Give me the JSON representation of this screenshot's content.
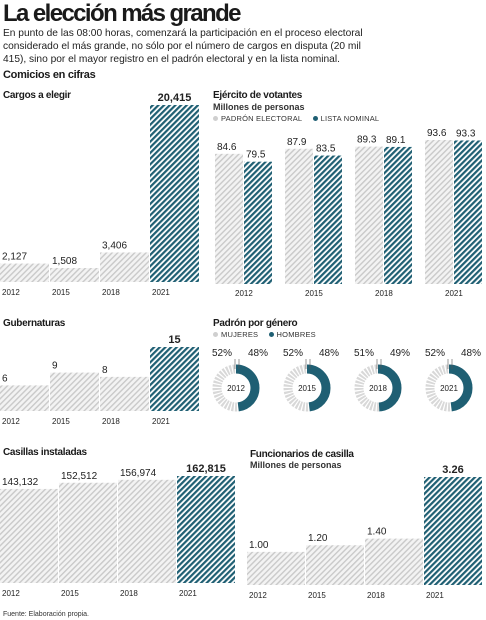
{
  "title": "La elección más grande",
  "intro": "En punto de las 08:00 horas, comenzará la participación en el proceso electoral considerado el más grande, no sólo por el número de cargos en disputa (20 mil 415), sino por el mayor registro en el padrón electoral y en la lista nominal.",
  "section_title": "Comicios en cifras",
  "source": "Fuente: Elaboración propia.",
  "colors": {
    "accent": "#1f5f73",
    "light": "#cfcfcf",
    "text": "#1a1a1a"
  },
  "chart_data": [
    {
      "id": "cargos",
      "type": "bar",
      "title": "Cargos a elegir",
      "categories": [
        "2012",
        "2015",
        "2018",
        "2021"
      ],
      "values": [
        2127,
        1508,
        3406,
        20415
      ],
      "value_labels": [
        "2,127",
        "1,508",
        "3,406",
        "20,415"
      ],
      "highlight_index": 3,
      "ylim": [
        0,
        20415
      ]
    },
    {
      "id": "ejercito",
      "type": "bar",
      "title": "Ejército de votantes",
      "subtitle": "Millones de personas",
      "categories": [
        "2012",
        "2015",
        "2018",
        "2021"
      ],
      "series": [
        {
          "name": "PADRÓN ELECTORAL",
          "values": [
            84.6,
            87.9,
            89.3,
            93.6
          ],
          "labels": [
            "84.6",
            "87.9",
            "89.3",
            "93.6"
          ]
        },
        {
          "name": "LISTA NOMINAL",
          "values": [
            79.5,
            83.5,
            89.1,
            93.3
          ],
          "labels": [
            "79.5",
            "83.5",
            "89.1",
            "93.3"
          ]
        }
      ],
      "ylim": [
        0,
        93.6
      ]
    },
    {
      "id": "gubernaturas",
      "type": "bar",
      "title": "Gubernaturas",
      "categories": [
        "2012",
        "2015",
        "2018",
        "2021"
      ],
      "values": [
        6,
        9,
        8,
        15
      ],
      "value_labels": [
        "6",
        "9",
        "8",
        "15"
      ],
      "highlight_index": 3,
      "ylim": [
        0,
        15
      ]
    },
    {
      "id": "genero",
      "type": "pie",
      "title": "Padrón por género",
      "series_names": [
        "MUJERES",
        "HOMBRES"
      ],
      "donuts": [
        {
          "year": "2012",
          "mujeres": 52,
          "hombres": 48,
          "mujeres_label": "52%",
          "hombres_label": "48%"
        },
        {
          "year": "2015",
          "mujeres": 52,
          "hombres": 48,
          "mujeres_label": "52%",
          "hombres_label": "48%"
        },
        {
          "year": "2018",
          "mujeres": 51,
          "hombres": 49,
          "mujeres_label": "51%",
          "hombres_label": "49%"
        },
        {
          "year": "2021",
          "mujeres": 52,
          "hombres": 48,
          "mujeres_label": "52%",
          "hombres_label": "48%"
        }
      ]
    },
    {
      "id": "casillas",
      "type": "bar",
      "title": "Casillas instaladas",
      "categories": [
        "2012",
        "2015",
        "2018",
        "2021"
      ],
      "values": [
        143132,
        152512,
        156974,
        162815
      ],
      "value_labels": [
        "143,132",
        "152,512",
        "156,974",
        "162,815"
      ],
      "highlight_index": 3,
      "ylim": [
        0,
        162815
      ]
    },
    {
      "id": "funcionarios",
      "type": "bar",
      "title": "Funcionarios de casilla",
      "subtitle": "Millones de personas",
      "categories": [
        "2012",
        "2015",
        "2018",
        "2021"
      ],
      "values": [
        1.0,
        1.2,
        1.4,
        3.26
      ],
      "value_labels": [
        "1.00",
        "1.20",
        "1.40",
        "3.26"
      ],
      "highlight_index": 3,
      "ylim": [
        0,
        3.26
      ]
    }
  ]
}
